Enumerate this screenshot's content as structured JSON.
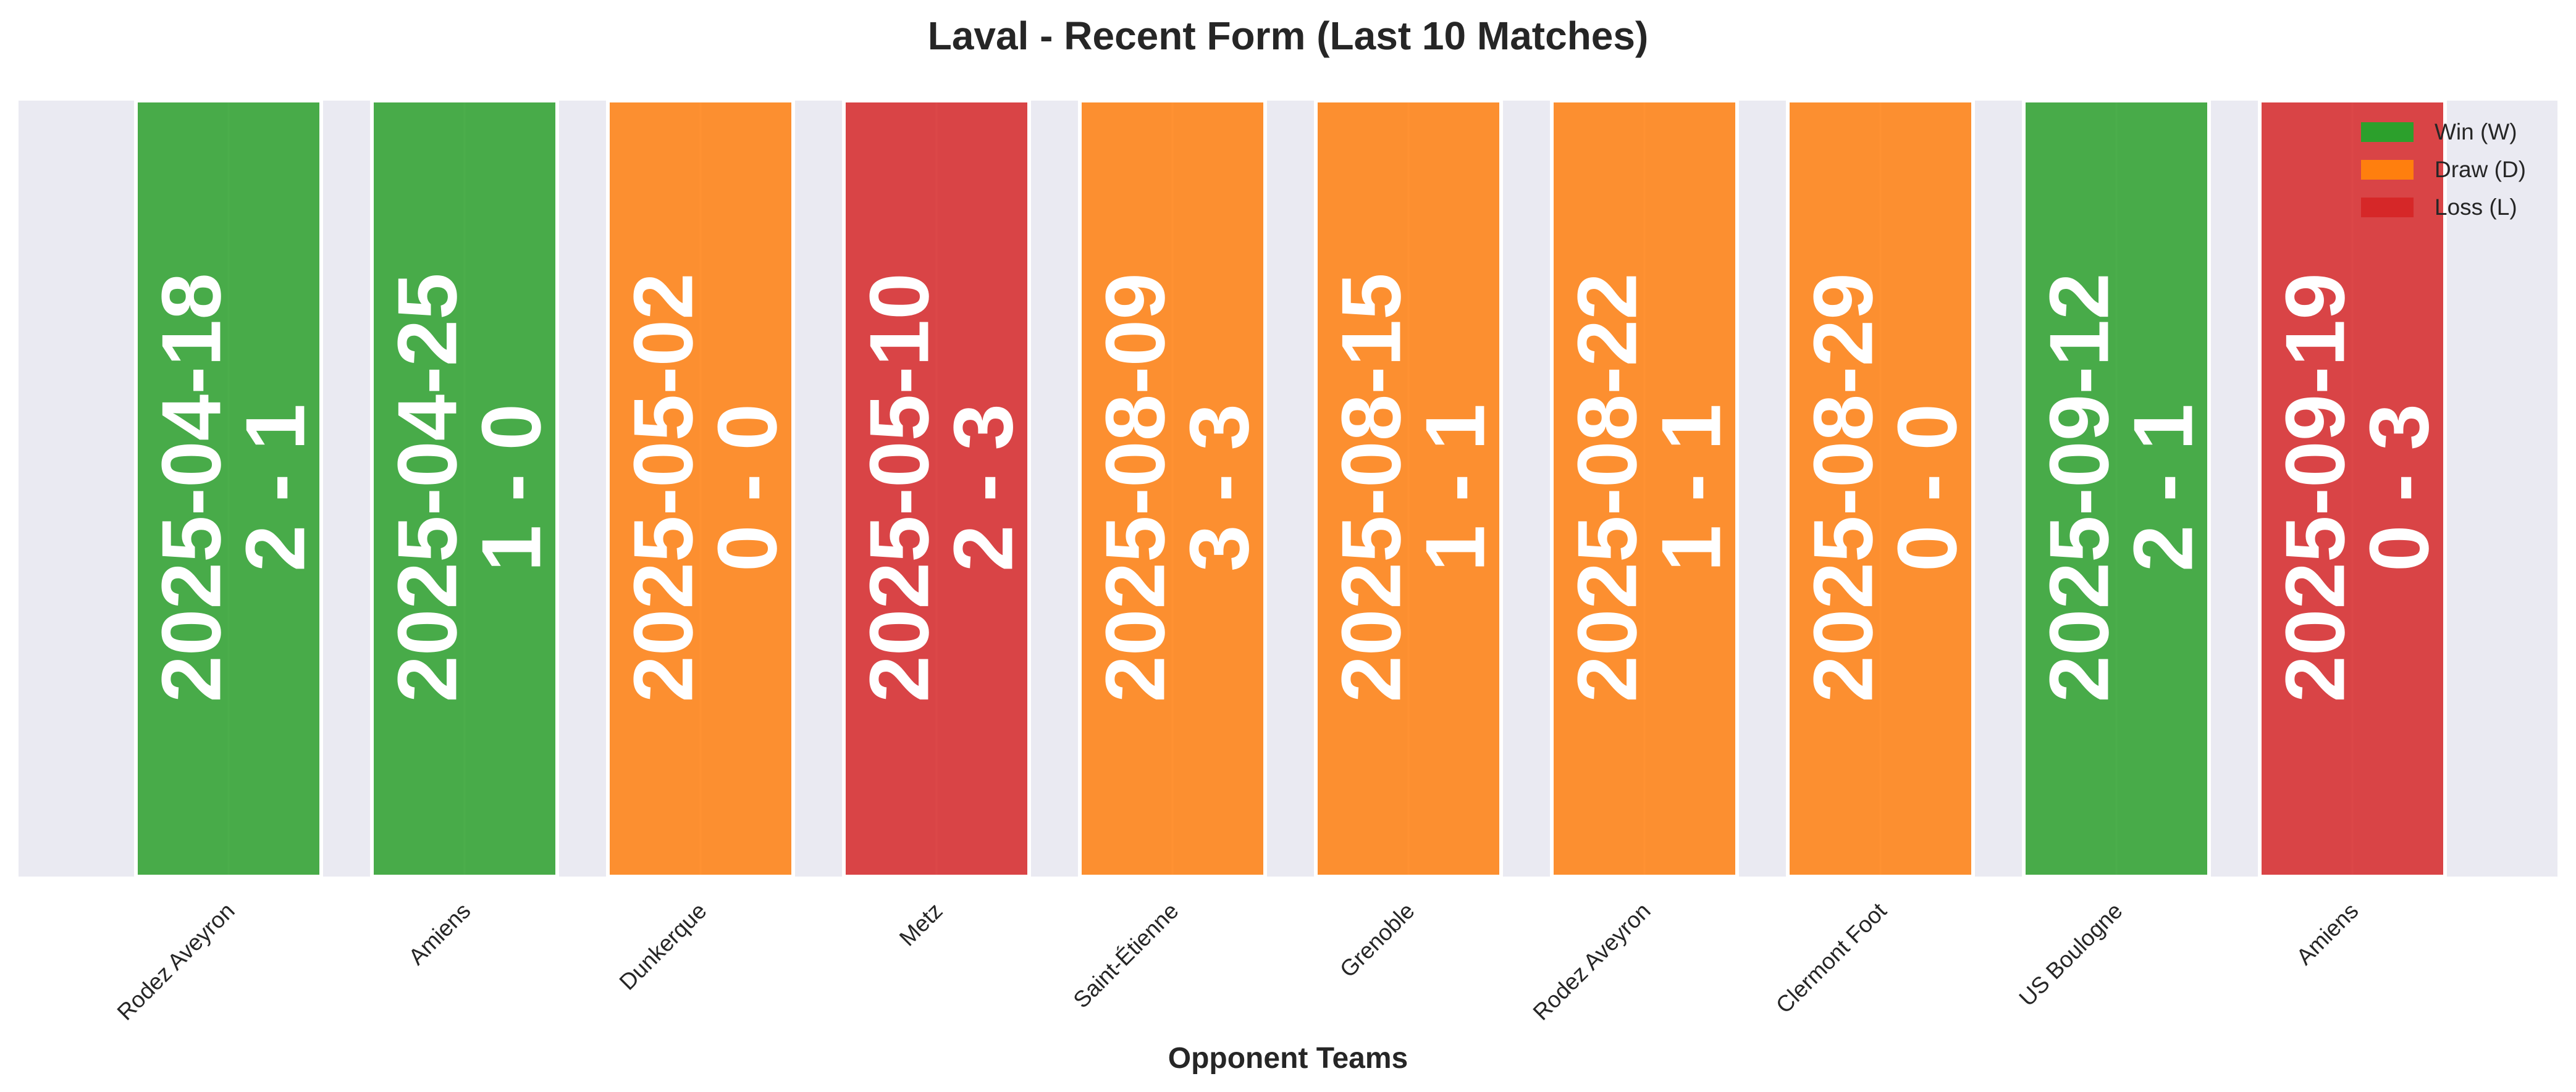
{
  "chart_data": {
    "type": "bar",
    "title": "Laval - Recent Form (Last 10 Matches)",
    "xlabel": "Opponent Teams",
    "ylabel": "",
    "grid": true,
    "legend_placement": "top-right",
    "categories": [
      "Rodez Aveyron",
      "Amiens",
      "Dunkerque",
      "Metz",
      "Saint-Étienne",
      "Grenoble",
      "Rodez Aveyron",
      "Clermont Foot",
      "US Boulogne",
      "Amiens"
    ],
    "matches": [
      {
        "opponent": "Rodez Aveyron",
        "date": "2025-04-18",
        "score": "2 - 1",
        "result": "W"
      },
      {
        "opponent": "Amiens",
        "date": "2025-04-25",
        "score": "1 - 0",
        "result": "W"
      },
      {
        "opponent": "Dunkerque",
        "date": "2025-05-02",
        "score": "0 - 0",
        "result": "D"
      },
      {
        "opponent": "Metz",
        "date": "2025-05-10",
        "score": "2 - 3",
        "result": "L"
      },
      {
        "opponent": "Saint-Étienne",
        "date": "2025-08-09",
        "score": "3 - 3",
        "result": "D"
      },
      {
        "opponent": "Grenoble",
        "date": "2025-08-15",
        "score": "1 - 1",
        "result": "D"
      },
      {
        "opponent": "Rodez Aveyron",
        "date": "2025-08-22",
        "score": "1 - 1",
        "result": "D"
      },
      {
        "opponent": "Clermont Foot",
        "date": "2025-08-29",
        "score": "0 - 0",
        "result": "D"
      },
      {
        "opponent": "US Boulogne",
        "date": "2025-09-12",
        "score": "2 - 1",
        "result": "W"
      },
      {
        "opponent": "Amiens",
        "date": "2025-09-19",
        "score": "0 - 3",
        "result": "L"
      }
    ],
    "legend": [
      {
        "result": "W",
        "label": "Win (W)",
        "color": "#2ca02c"
      },
      {
        "result": "D",
        "label": "Draw (D)",
        "color": "#ff7f0e"
      },
      {
        "result": "L",
        "label": "Loss (L)",
        "color": "#d62728"
      }
    ],
    "colors": {
      "W": "#2ca02c",
      "D": "#ff7f0e",
      "L": "#d62728",
      "plot_background": "#eaeaf2",
      "grid": "#ffffff"
    }
  }
}
